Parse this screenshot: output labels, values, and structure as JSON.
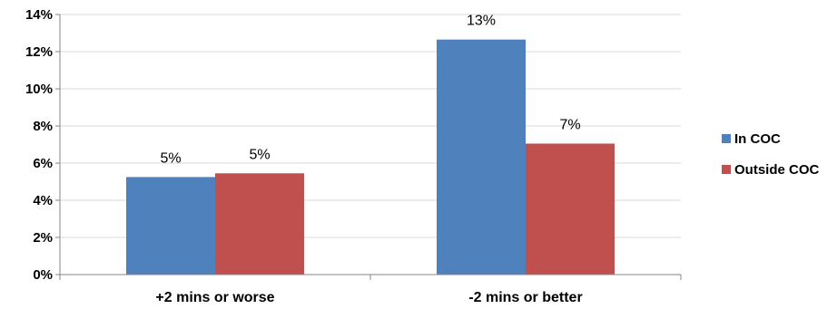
{
  "chart_data": {
    "type": "bar",
    "categories": [
      "+2 mins or worse",
      "-2 mins or better"
    ],
    "series": [
      {
        "name": "In COC",
        "values": [
          5.25,
          12.65
        ],
        "labels": [
          "5%",
          "13%"
        ],
        "color": "#4f81bd"
      },
      {
        "name": "Outside COC",
        "values": [
          5.45,
          7.05
        ],
        "labels": [
          "5%",
          "7%"
        ],
        "color": "#c0504d"
      }
    ],
    "y_ticks": [
      0,
      2,
      4,
      6,
      8,
      10,
      12,
      14
    ],
    "y_tick_labels": [
      "0%",
      "2%",
      "4%",
      "6%",
      "8%",
      "10%",
      "12%",
      "14%"
    ],
    "ylim": [
      0,
      14
    ],
    "grid": true,
    "legend": "right"
  }
}
